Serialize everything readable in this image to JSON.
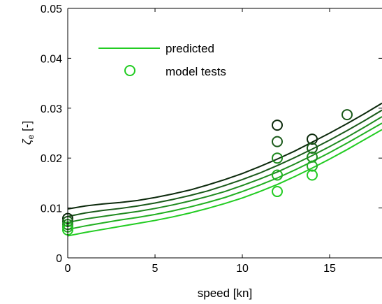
{
  "chart_data": {
    "type": "line",
    "xlabel": "speed [kn]",
    "ylabel_symbol": "ζ",
    "ylabel_sub": "e",
    "ylabel_unit": " [-]",
    "xlim": [
      0,
      18
    ],
    "ylim": [
      0,
      0.05
    ],
    "xticks": [
      0,
      5,
      10,
      15
    ],
    "xtick_labels": [
      "0",
      "5",
      "10",
      "15"
    ],
    "yticks": [
      0,
      0.01,
      0.02,
      0.03,
      0.04,
      0.05
    ],
    "ytick_labels": [
      "0",
      "0.01",
      "0.02",
      "0.03",
      "0.04",
      "0.05"
    ],
    "grid": false,
    "legend_position": "top-left",
    "legend": [
      {
        "label": "predicted",
        "kind": "line",
        "color": "#22cc22"
      },
      {
        "label": "model tests",
        "kind": "marker",
        "color": "#22cc22"
      }
    ],
    "series": [
      {
        "kind": "line",
        "color": "#0c2a0c",
        "x": [
          0,
          1,
          2,
          3,
          4,
          5,
          6,
          7,
          8,
          9,
          10,
          11,
          12,
          13,
          14,
          15,
          16,
          17,
          18
        ],
        "y": [
          0.0098,
          0.0104,
          0.0108,
          0.0111,
          0.0115,
          0.0121,
          0.0128,
          0.0136,
          0.0146,
          0.0157,
          0.0169,
          0.0183,
          0.0198,
          0.0214,
          0.0232,
          0.025,
          0.0269,
          0.0289,
          0.031
        ]
      },
      {
        "kind": "line",
        "color": "#1a5a1a",
        "x": [
          0,
          1,
          2,
          3,
          4,
          5,
          6,
          7,
          8,
          9,
          10,
          11,
          12,
          13,
          14,
          15,
          16,
          17,
          18
        ],
        "y": [
          0.0083,
          0.009,
          0.0095,
          0.0099,
          0.0104,
          0.011,
          0.0117,
          0.0125,
          0.0134,
          0.0145,
          0.0157,
          0.017,
          0.0185,
          0.0201,
          0.0218,
          0.0236,
          0.0255,
          0.0275,
          0.0296
        ]
      },
      {
        "kind": "line",
        "color": "#1f8a1f",
        "x": [
          0,
          1,
          2,
          3,
          4,
          5,
          6,
          7,
          8,
          9,
          10,
          11,
          12,
          13,
          14,
          15,
          16,
          17,
          18
        ],
        "y": [
          0.0071,
          0.0078,
          0.0083,
          0.0088,
          0.0093,
          0.0099,
          0.0106,
          0.0114,
          0.0123,
          0.0133,
          0.0145,
          0.0158,
          0.0172,
          0.0188,
          0.0205,
          0.0223,
          0.0242,
          0.0262,
          0.0283
        ]
      },
      {
        "kind": "line",
        "color": "#22b022",
        "x": [
          0,
          1,
          2,
          3,
          4,
          5,
          6,
          7,
          8,
          9,
          10,
          11,
          12,
          13,
          14,
          15,
          16,
          17,
          18
        ],
        "y": [
          0.0057,
          0.0064,
          0.007,
          0.0076,
          0.0081,
          0.0087,
          0.0094,
          0.0102,
          0.0111,
          0.0121,
          0.0133,
          0.0146,
          0.016,
          0.0176,
          0.0193,
          0.0211,
          0.023,
          0.025,
          0.027
        ]
      },
      {
        "kind": "line",
        "color": "#22cc22",
        "x": [
          0,
          1,
          2,
          3,
          4,
          5,
          6,
          7,
          8,
          9,
          10,
          11,
          12,
          13,
          14,
          15,
          16,
          17,
          18
        ],
        "y": [
          0.0044,
          0.0051,
          0.0057,
          0.0063,
          0.0069,
          0.0075,
          0.0082,
          0.009,
          0.0099,
          0.0109,
          0.012,
          0.0133,
          0.0147,
          0.0163,
          0.018,
          0.0198,
          0.0217,
          0.0237,
          0.0257
        ]
      }
    ],
    "points": [
      {
        "x": 0,
        "y": 0.0079,
        "color": "#0c2a0c"
      },
      {
        "x": 0,
        "y": 0.0073,
        "color": "#1a5a1a"
      },
      {
        "x": 0,
        "y": 0.0067,
        "color": "#1f8a1f"
      },
      {
        "x": 0,
        "y": 0.0062,
        "color": "#22b022"
      },
      {
        "x": 0,
        "y": 0.0056,
        "color": "#22cc22"
      },
      {
        "x": 12,
        "y": 0.0266,
        "color": "#0c2a0c"
      },
      {
        "x": 12,
        "y": 0.0233,
        "color": "#1a5a1a"
      },
      {
        "x": 12,
        "y": 0.02,
        "color": "#1f8a1f"
      },
      {
        "x": 12,
        "y": 0.0166,
        "color": "#22b022"
      },
      {
        "x": 12,
        "y": 0.0133,
        "color": "#22cc22"
      },
      {
        "x": 14,
        "y": 0.0238,
        "color": "#0c2a0c"
      },
      {
        "x": 14,
        "y": 0.022,
        "color": "#1a5a1a"
      },
      {
        "x": 14,
        "y": 0.0202,
        "color": "#1f8a1f"
      },
      {
        "x": 14,
        "y": 0.0184,
        "color": "#22b022"
      },
      {
        "x": 14,
        "y": 0.0166,
        "color": "#22cc22"
      },
      {
        "x": 16,
        "y": 0.0287,
        "color": "#1a5a1a"
      }
    ]
  }
}
